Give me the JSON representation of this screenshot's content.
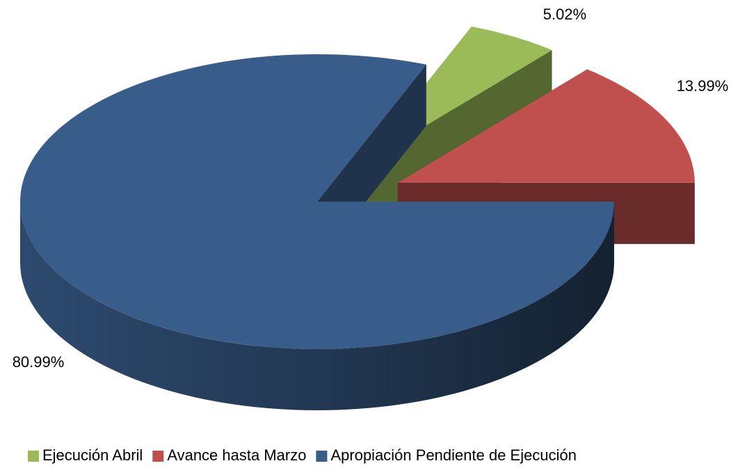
{
  "chart_data": {
    "type": "pie",
    "categories": [
      "Ejecución Abril",
      "Avance hasta Marzo",
      "Apropiación Pendiente de Ejecución"
    ],
    "values": [
      5.02,
      13.99,
      80.99
    ],
    "value_labels": [
      "5.02%",
      "13.99%",
      "80.99%"
    ],
    "colors": [
      "#9bbb59",
      "#c0504d",
      "#385d8a"
    ],
    "legend": "bottom"
  }
}
